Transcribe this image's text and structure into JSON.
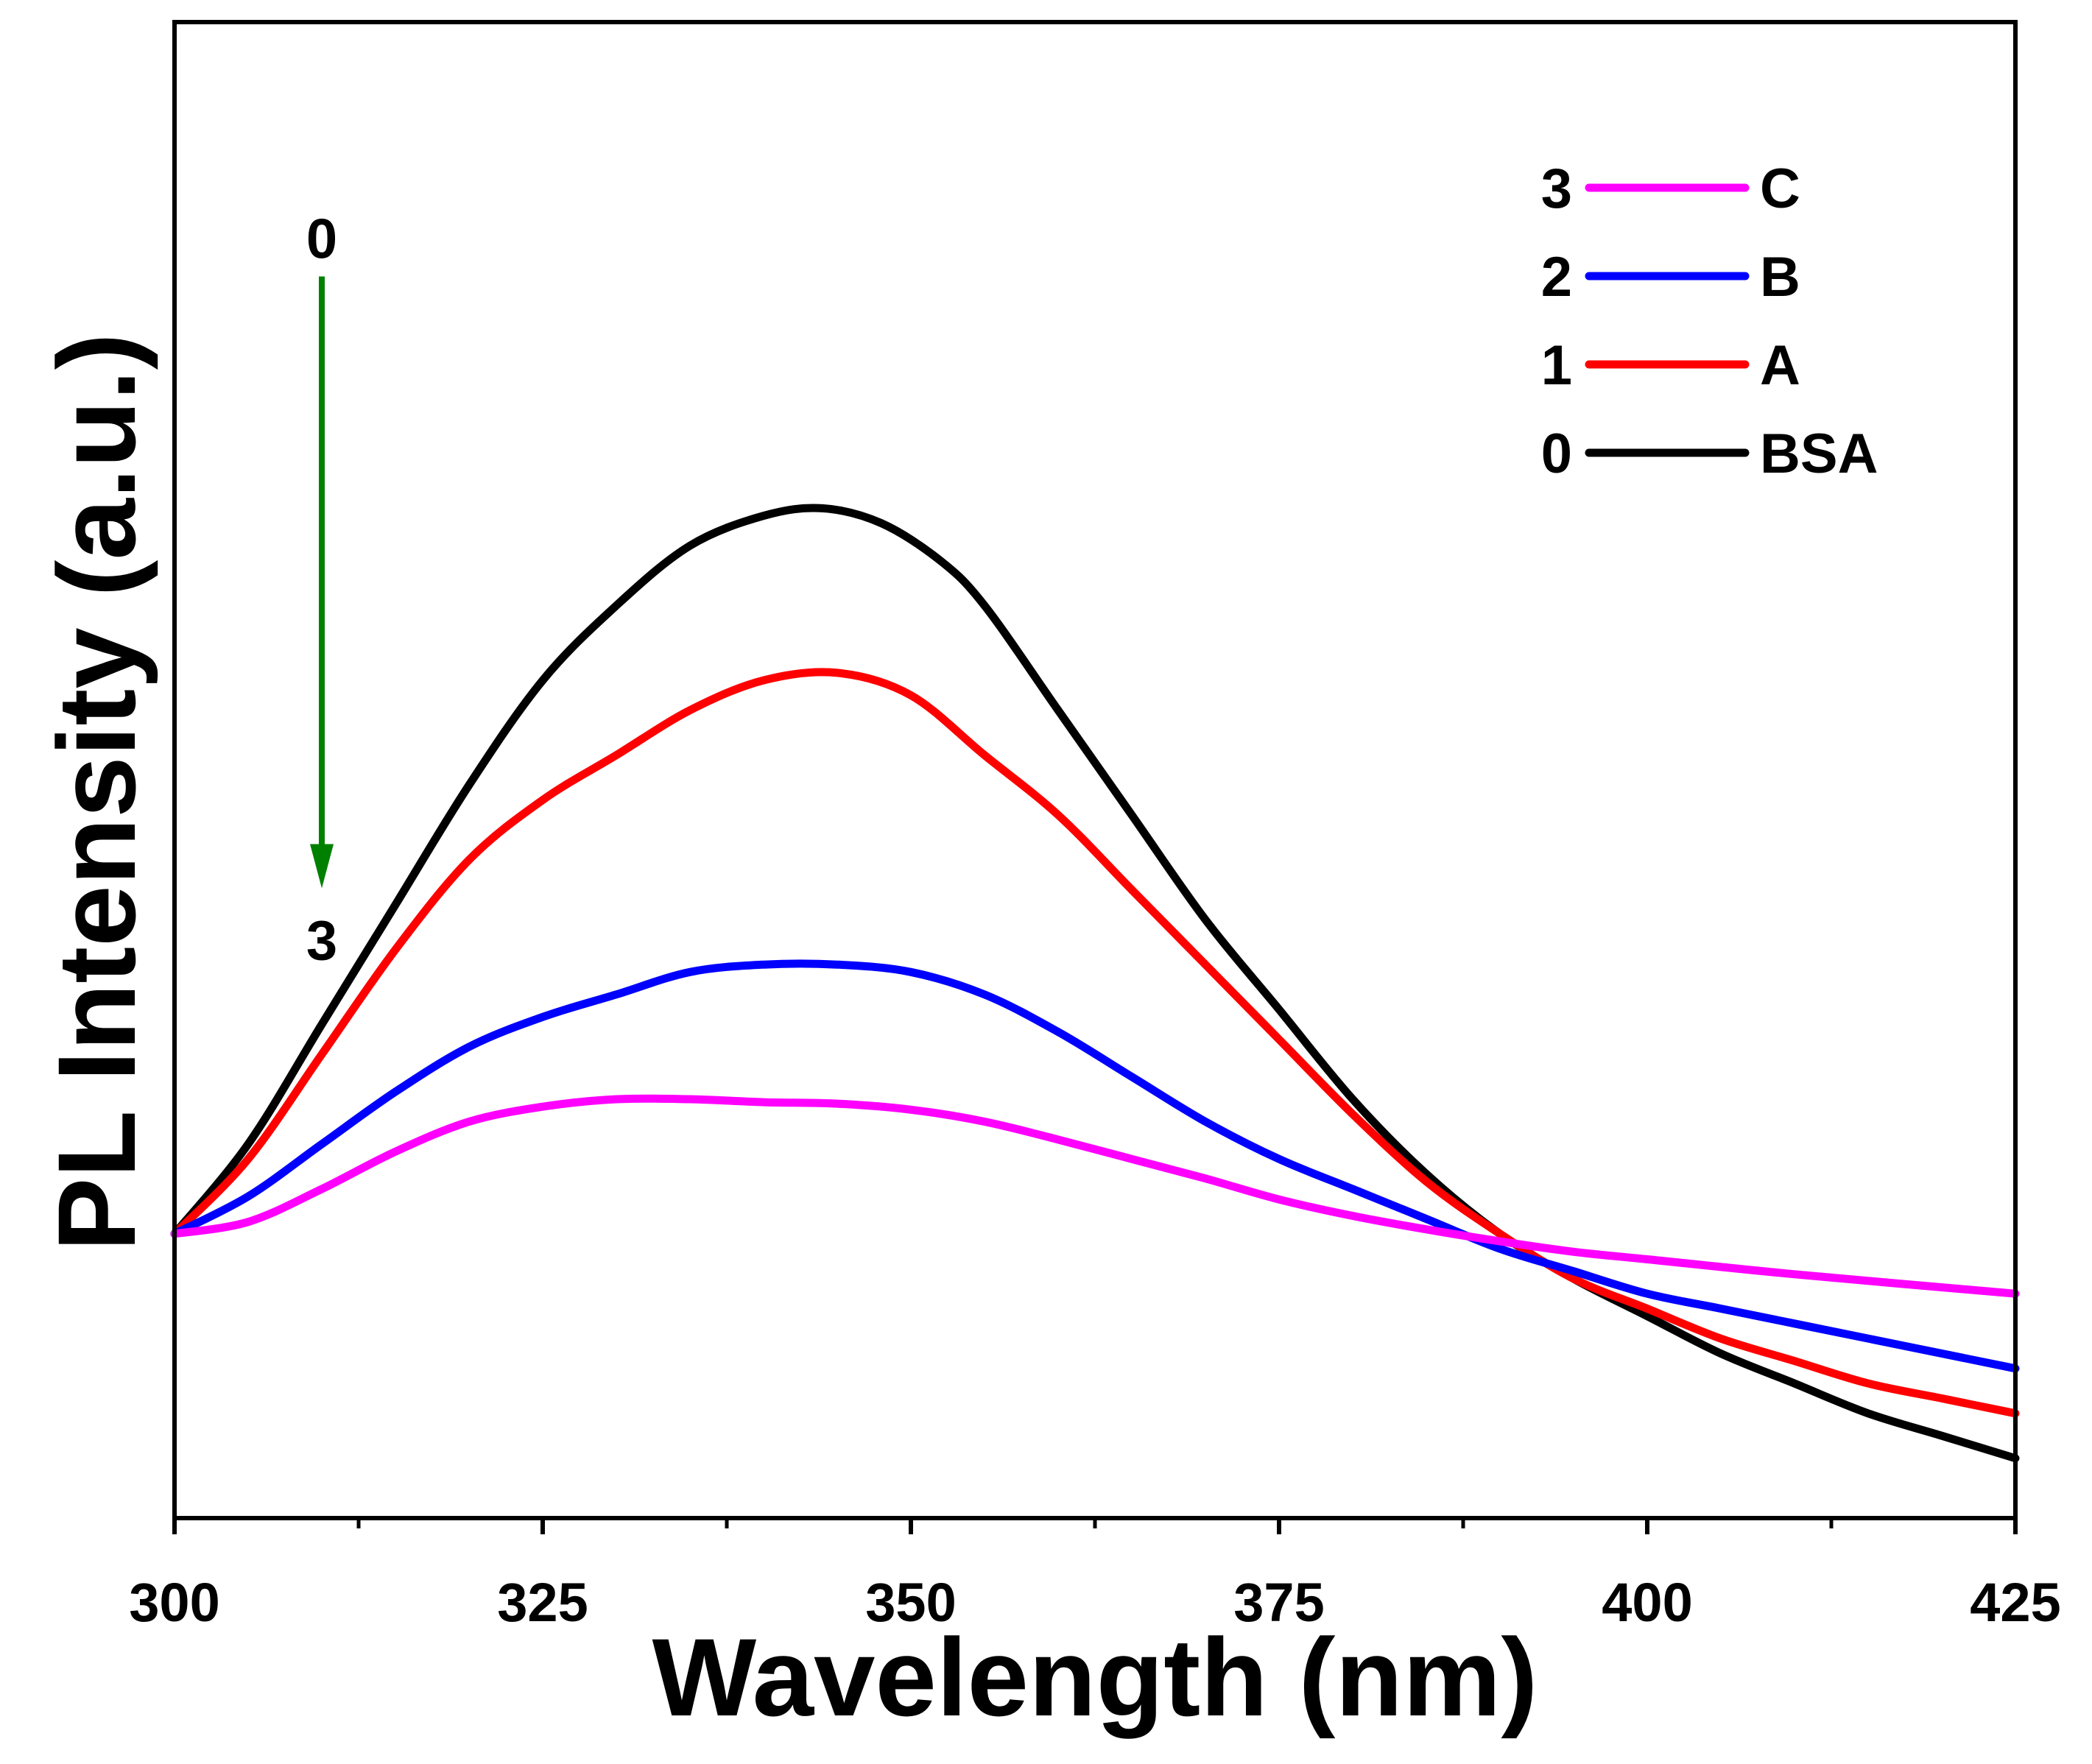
{
  "chart_data": {
    "type": "line",
    "title": "",
    "xlabel": "Wavelength (nm)",
    "ylabel": "PL Intensity (a.u.)",
    "xlim": [
      300,
      425
    ],
    "ylim": [
      0,
      100
    ],
    "x_ticks": [
      300,
      325,
      350,
      375,
      400,
      425
    ],
    "x_tick_labels": [
      "300",
      "325",
      "350",
      "375",
      "400",
      "425"
    ],
    "x_minor_ticks": [
      312.5,
      337.5,
      362.5,
      387.5,
      412.5
    ],
    "y_ticks_visible": false,
    "grid": false,
    "legend_position": "top-right",
    "series": [
      {
        "id": "0",
        "name": "BSA",
        "color": "#000000",
        "x": [
          300,
          305,
          310,
          315,
          320,
          325,
          330,
          335,
          340,
          344,
          348,
          352,
          355,
          360,
          365,
          370,
          375,
          380,
          385,
          390,
          395,
          400,
          405,
          410,
          415,
          420,
          425
        ],
        "y": [
          19,
          25,
          33,
          41,
          49,
          56,
          61,
          65,
          67,
          67.5,
          66.5,
          64,
          61,
          54,
          47,
          40,
          34,
          28,
          23,
          19,
          16,
          13.5,
          11,
          9,
          7,
          5.5,
          4
        ]
      },
      {
        "id": "1",
        "name": "A",
        "color": "#ff0000",
        "x": [
          300,
          305,
          310,
          315,
          320,
          325,
          330,
          335,
          340,
          345,
          350,
          355,
          360,
          365,
          370,
          375,
          380,
          385,
          390,
          395,
          400,
          405,
          410,
          415,
          420,
          425
        ],
        "y": [
          19,
          24,
          31,
          38,
          44,
          48,
          51,
          54,
          56,
          56.5,
          55,
          51,
          47,
          42,
          37,
          32,
          27,
          22.5,
          19,
          16,
          14,
          12,
          10.5,
          9,
          8,
          7
        ]
      },
      {
        "id": "2",
        "name": "B",
        "color": "#0000ff",
        "x": [
          300,
          305,
          310,
          315,
          320,
          325,
          330,
          335,
          340,
          345,
          350,
          355,
          360,
          365,
          370,
          375,
          380,
          385,
          390,
          395,
          400,
          405,
          410,
          425
        ],
        "y": [
          19,
          21.5,
          25,
          28.5,
          31.5,
          33.5,
          35,
          36.5,
          37,
          37,
          36.5,
          35,
          32.5,
          29.5,
          26.5,
          24,
          22,
          20,
          18,
          16.5,
          15,
          14,
          13,
          10
        ]
      },
      {
        "id": "3",
        "name": "C",
        "color": "#ff00ff",
        "x": [
          300,
          305,
          310,
          315,
          320,
          325,
          330,
          335,
          340,
          345,
          350,
          355,
          360,
          365,
          370,
          375,
          380,
          385,
          390,
          395,
          400,
          410,
          425
        ],
        "y": [
          19,
          19.8,
          22,
          24.5,
          26.5,
          27.5,
          28,
          28,
          27.8,
          27.7,
          27.3,
          26.5,
          25.3,
          24,
          22.7,
          21.3,
          20.2,
          19.3,
          18.5,
          17.8,
          17.3,
          16.3,
          15
        ]
      }
    ],
    "annotations": [
      {
        "type": "arrow",
        "from_label": "0",
        "to_label": "3",
        "x": 310,
        "y_from": 83,
        "y_to": 42,
        "color": "#008000"
      }
    ]
  }
}
